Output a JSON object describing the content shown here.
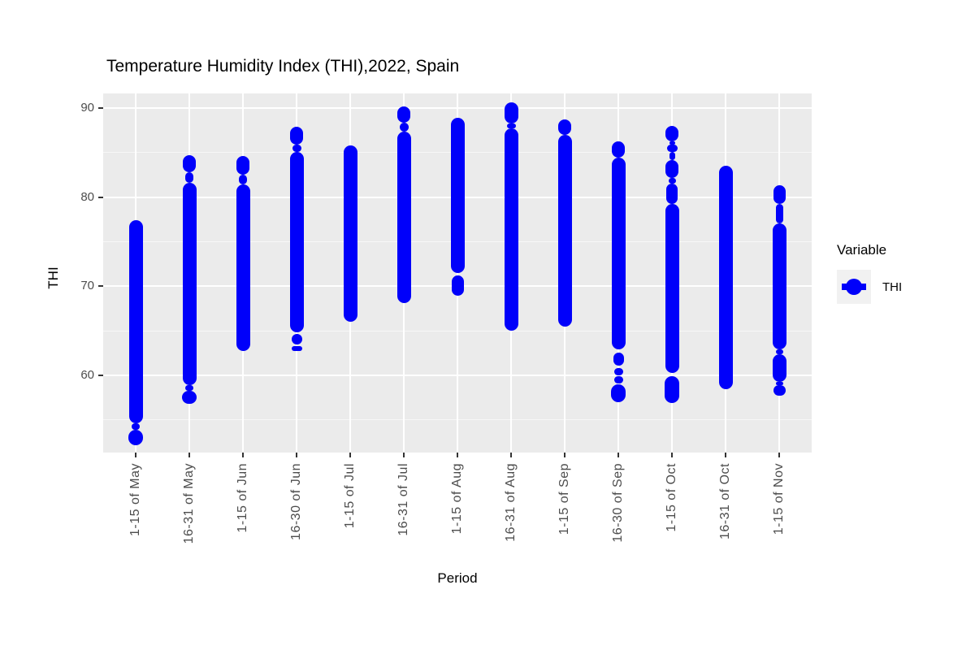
{
  "legend": {
    "title": "Variable",
    "items": [
      {
        "label": "THI",
        "color": "#0000FA"
      }
    ]
  },
  "colors": {
    "point": "#0000FA",
    "panel_bg": "#EBEBEB",
    "gridline": "#FFFFFF",
    "tick_label_text": "#4D4D4D",
    "axis_tick_mark": "#333333",
    "title_text": "#000000",
    "legend_key_bg": "#F1F1F1"
  },
  "chart_data": {
    "type": "scatter",
    "title": "Temperature Humidity Index (THI),2022, Spain",
    "xlabel": "Period",
    "ylabel": "THI",
    "ylim": [
      51.3,
      91.6
    ],
    "y_major_ticks": [
      60,
      70,
      80,
      90
    ],
    "y_minor_gridlines": [
      55,
      65,
      75,
      85
    ],
    "grid": "white major/minor horizontal lines and white vertical lines per category on gray panel",
    "legend_position": "right",
    "categories": [
      "1-15 of May",
      "16-31 of May",
      "1-15 of Jun",
      "16-30 of Jun",
      "1-15 of Jul",
      "16-31 of Jul",
      "1-15 of Aug",
      "16-31 of Aug",
      "1-15 of Sep",
      "16-30 of Sep",
      "1-15 of Oct",
      "16-31 of Oct",
      "1-15 of Nov"
    ],
    "series": [
      {
        "name": "THI",
        "color": "#0000FA"
      }
    ],
    "columns": [
      {
        "label": "1-15 of May",
        "min": 52.8,
        "max": 77.0,
        "segments": [
          [
            52.2,
            53.9,
            18
          ],
          [
            53.9,
            54.6,
            10
          ],
          [
            54.6,
            77.4,
            17
          ]
        ]
      },
      {
        "label": "16-31 of May",
        "min": 57.3,
        "max": 84.2,
        "segments": [
          [
            56.8,
            58.3,
            18
          ],
          [
            58.3,
            58.9,
            10
          ],
          [
            58.9,
            81.6,
            17
          ],
          [
            81.6,
            82.8,
            10
          ],
          [
            82.8,
            84.7,
            16
          ]
        ]
      },
      {
        "label": "1-15 of Jun",
        "min": 63.2,
        "max": 84.1,
        "segments": [
          [
            62.7,
            81.4,
            17
          ],
          [
            81.4,
            82.5,
            10
          ],
          [
            82.5,
            84.6,
            16
          ]
        ]
      },
      {
        "label": "16-30 of Jun",
        "min": 63.2,
        "max": 87.4,
        "segments": [
          [
            62.7,
            63.3,
            13
          ],
          [
            63.5,
            64.7,
            13
          ],
          [
            64.8,
            85.1,
            17
          ],
          [
            85.1,
            85.9,
            11
          ],
          [
            85.9,
            87.9,
            16
          ]
        ]
      },
      {
        "label": "1-15 of Jul",
        "min": 66.5,
        "max": 85.3,
        "segments": [
          [
            66.0,
            85.8,
            17
          ]
        ]
      },
      {
        "label": "16-31 of Jul",
        "min": 68.6,
        "max": 89.7,
        "segments": [
          [
            68.1,
            87.4,
            17
          ],
          [
            87.4,
            88.4,
            11
          ],
          [
            88.4,
            90.2,
            16
          ]
        ]
      },
      {
        "label": "1-15 of Aug",
        "min": 69.4,
        "max": 88.4,
        "segments": [
          [
            68.9,
            71.2,
            15
          ],
          [
            71.5,
            88.9,
            17
          ]
        ]
      },
      {
        "label": "16-31 of Aug",
        "min": 65.5,
        "max": 90.1,
        "segments": [
          [
            65.0,
            87.7,
            17
          ],
          [
            87.7,
            88.3,
            11
          ],
          [
            88.3,
            90.6,
            17
          ]
        ]
      },
      {
        "label": "1-15 of Sep",
        "min": 66.0,
        "max": 88.2,
        "segments": [
          [
            65.5,
            87.0,
            17
          ],
          [
            87.0,
            88.7,
            16
          ]
        ]
      },
      {
        "label": "16-30 of Sep",
        "min": 57.5,
        "max": 85.8,
        "segments": [
          [
            57.0,
            59.0,
            18
          ],
          [
            59.1,
            59.9,
            11
          ],
          [
            60.0,
            60.8,
            11
          ],
          [
            61.1,
            62.6,
            13
          ],
          [
            62.9,
            84.4,
            17
          ],
          [
            84.4,
            86.3,
            16
          ]
        ]
      },
      {
        "label": "1-15 of Oct",
        "min": 57.4,
        "max": 87.5,
        "segments": [
          [
            56.9,
            59.9,
            18
          ],
          [
            60.3,
            79.2,
            17
          ],
          [
            79.2,
            81.5,
            14
          ],
          [
            81.5,
            82.2,
            9
          ],
          [
            82.2,
            84.2,
            16
          ],
          [
            84.2,
            85.1,
            7
          ],
          [
            85.1,
            85.9,
            13
          ],
          [
            85.9,
            86.3,
            7
          ],
          [
            86.3,
            88.0,
            16
          ]
        ]
      },
      {
        "label": "16-31 of Oct",
        "min": 59.0,
        "max": 83.0,
        "segments": [
          [
            58.5,
            83.5,
            17
          ]
        ]
      },
      {
        "label": "1-15 of Nov",
        "min": 58.2,
        "max": 80.8,
        "segments": [
          [
            57.7,
            58.9,
            15
          ],
          [
            58.9,
            59.3,
            9
          ],
          [
            59.3,
            62.4,
            17
          ],
          [
            62.4,
            62.9,
            9
          ],
          [
            62.9,
            77.1,
            17
          ],
          [
            77.1,
            79.2,
            9
          ],
          [
            79.2,
            81.3,
            15
          ]
        ]
      }
    ]
  }
}
